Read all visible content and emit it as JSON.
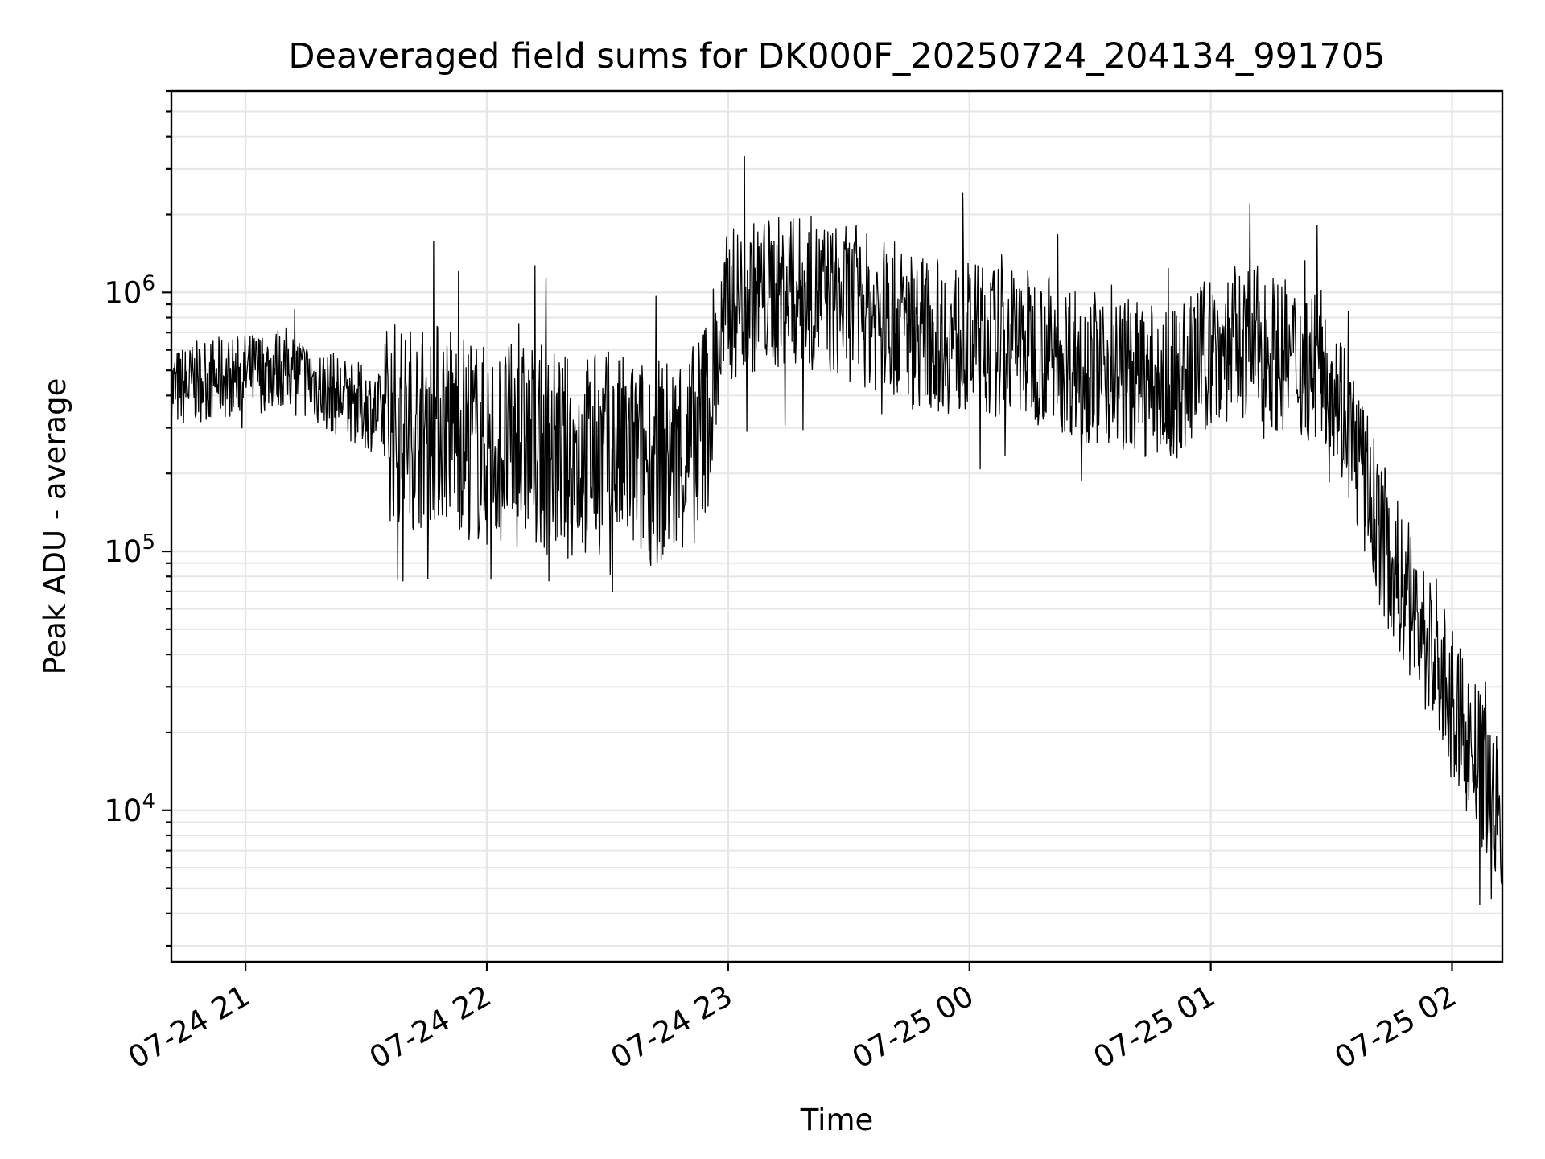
{
  "chart_data": {
    "type": "line",
    "title": "Deaveraged field sums for DK000F_20250724_204134_991705",
    "xlabel": "Time",
    "ylabel": "Peak ADU - average",
    "yscale": "log",
    "xlim": [
      "2025-07-24T20:41:34",
      "2025-07-25T02:12:30"
    ],
    "ylim": [
      2600,
      6000000
    ],
    "grid": true,
    "legend": "none",
    "line_color": "#000000",
    "x_ticks": [
      {
        "value": "2025-07-24T21:00:00",
        "label": "07-24 21"
      },
      {
        "value": "2025-07-24T22:00:00",
        "label": "07-24 22"
      },
      {
        "value": "2025-07-24T23:00:00",
        "label": "07-24 23"
      },
      {
        "value": "2025-07-25T00:00:00",
        "label": "07-25 00"
      },
      {
        "value": "2025-07-25T01:00:00",
        "label": "07-25 01"
      },
      {
        "value": "2025-07-25T02:00:00",
        "label": "07-25 02"
      }
    ],
    "y_ticks": [
      {
        "value": 10000,
        "base": "10",
        "exp": "4"
      },
      {
        "value": 100000,
        "base": "10",
        "exp": "5"
      },
      {
        "value": 1000000,
        "base": "10",
        "exp": "6"
      }
    ],
    "series": [
      {
        "x": [
          "2025-07-24T20:41:34",
          "2025-07-24T20:50:00",
          "2025-07-24T21:00:00",
          "2025-07-24T21:10:00",
          "2025-07-24T21:20:00",
          "2025-07-24T21:30:00",
          "2025-07-24T21:40:00",
          "2025-07-24T21:50:00",
          "2025-07-24T22:00:00",
          "2025-07-24T22:10:00",
          "2025-07-24T22:20:00",
          "2025-07-24T22:30:00",
          "2025-07-24T22:40:00",
          "2025-07-24T22:50:00",
          "2025-07-24T22:55:00",
          "2025-07-24T23:00:00",
          "2025-07-24T23:10:00",
          "2025-07-24T23:20:00",
          "2025-07-24T23:30:00",
          "2025-07-24T23:40:00",
          "2025-07-24T23:50:00",
          "2025-07-25T00:00:00",
          "2025-07-25T00:10:00",
          "2025-07-25T00:20:00",
          "2025-07-25T00:30:00",
          "2025-07-25T00:40:00",
          "2025-07-25T00:50:00",
          "2025-07-25T01:00:00",
          "2025-07-25T01:10:00",
          "2025-07-25T01:20:00",
          "2025-07-25T01:30:00",
          "2025-07-25T01:35:00",
          "2025-07-25T01:40:00",
          "2025-07-25T01:45:00",
          "2025-07-25T01:50:00",
          "2025-07-25T01:55:00",
          "2025-07-25T02:00:00",
          "2025-07-25T02:05:00",
          "2025-07-25T02:12:30"
        ],
        "y": [
          420000,
          460000,
          480000,
          520000,
          420000,
          360000,
          300000,
          320000,
          250000,
          260000,
          230000,
          240000,
          220000,
          230000,
          360000,
          900000,
          1000000,
          1000000,
          900000,
          800000,
          700000,
          650000,
          650000,
          600000,
          520000,
          480000,
          420000,
          600000,
          650000,
          550000,
          500000,
          280000,
          150000,
          90000,
          60000,
          40000,
          25000,
          17000,
          9000
        ]
      }
    ]
  }
}
